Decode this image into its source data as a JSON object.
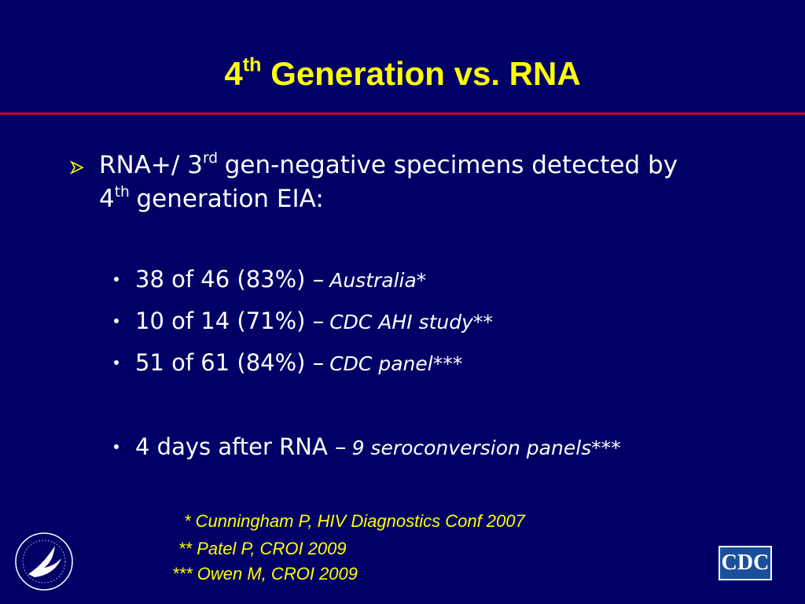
{
  "title": {
    "number": "4",
    "sup": "th",
    "rest": "Generation vs. RNA"
  },
  "main_bullet": {
    "line1": "RNA+/ 3",
    "sup1": "rd",
    "line1_rest": "gen-negative specimens detected by",
    "line2": "4",
    "sup2": "th",
    "line2_rest": "generation EIA:"
  },
  "sub_bullets": [
    {
      "text": "38 of 46 (83%) –",
      "source": "Australia*"
    },
    {
      "text": "10 of 14 (71%) –",
      "source": "CDC AHI study**"
    },
    {
      "text": "51 of 61 (84%) –",
      "source": "CDC panel***"
    },
    {
      "text": "4 days after RNA –",
      "source": "9 seroconversion panels***"
    }
  ],
  "references": [
    "* Cunningham P, HIV Diagnostics Conf 2007",
    "** Patel P, CROI 2009",
    "*** Owen M, CROI 2009"
  ],
  "logo": "CDC"
}
